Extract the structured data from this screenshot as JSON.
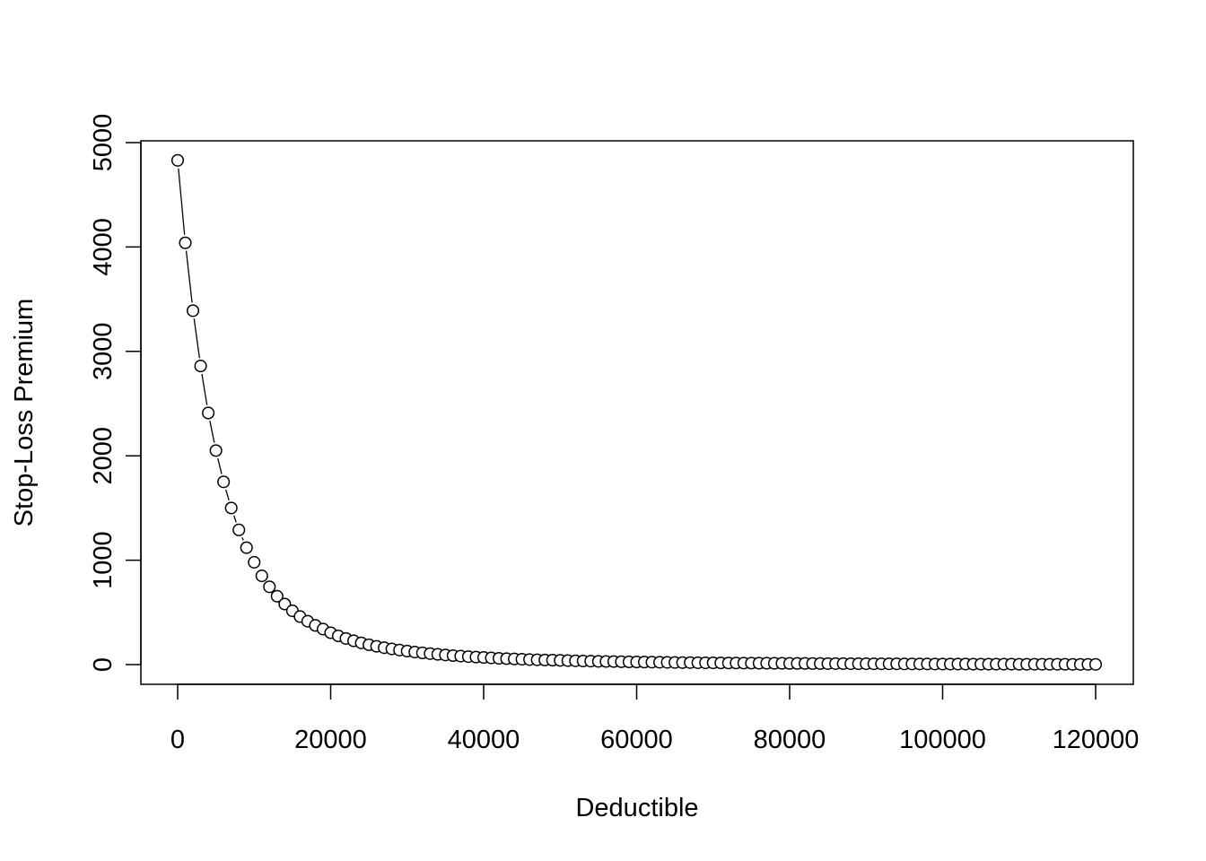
{
  "chart_data": {
    "type": "scatter",
    "title": "",
    "xlabel": "Deductible",
    "ylabel": "Stop-Loss Premium",
    "xlim": [
      0,
      120000
    ],
    "ylim": [
      0,
      5000
    ],
    "xticks": [
      0,
      20000,
      40000,
      60000,
      80000,
      100000,
      120000
    ],
    "yticks": [
      0,
      1000,
      2000,
      3000,
      4000,
      5000
    ],
    "xtick_labels": [
      "0",
      "20000",
      "40000",
      "60000",
      "80000",
      "100000",
      "120000"
    ],
    "ytick_labels": [
      "0",
      "1000",
      "2000",
      "3000",
      "4000",
      "5000"
    ],
    "marker": "open-circle",
    "connected_by": "line segments between points (R type 'b')",
    "grid": false,
    "legend": "none",
    "colors": {
      "points": "#000000",
      "line": "#000000",
      "background": "#ffffff"
    },
    "series": [
      {
        "x": [
          0,
          1000,
          2000,
          3000,
          4000,
          5000,
          6000,
          7000,
          8000,
          9000,
          10000,
          11000,
          12000,
          13000,
          14000,
          15000,
          16000,
          17000,
          18000,
          19000,
          20000,
          21000,
          22000,
          23000,
          24000,
          25000,
          26000,
          27000,
          28000,
          29000,
          30000,
          31000,
          32000,
          33000,
          34000,
          35000,
          36000,
          37000,
          38000,
          39000,
          40000,
          41000,
          42000,
          43000,
          44000,
          45000,
          46000,
          47000,
          48000,
          49000,
          50000,
          51000,
          52000,
          53000,
          54000,
          55000,
          56000,
          57000,
          58000,
          59000,
          60000,
          61000,
          62000,
          63000,
          64000,
          65000,
          66000,
          67000,
          68000,
          69000,
          70000,
          71000,
          72000,
          73000,
          74000,
          75000,
          76000,
          77000,
          78000,
          79000,
          80000,
          81000,
          82000,
          83000,
          84000,
          85000,
          86000,
          87000,
          88000,
          89000,
          90000,
          91000,
          92000,
          93000,
          94000,
          95000,
          96000,
          97000,
          98000,
          99000,
          100000,
          101000,
          102000,
          103000,
          104000,
          105000,
          106000,
          107000,
          108000,
          109000,
          110000,
          111000,
          112000,
          113000,
          114000,
          115000,
          116000,
          117000,
          118000,
          119000,
          120000
        ],
        "y": [
          4830,
          4040,
          3390,
          2860,
          2410,
          2050,
          1750,
          1500,
          1290,
          1120,
          980,
          850,
          745,
          655,
          580,
          515,
          460,
          415,
          375,
          340,
          305,
          275,
          250,
          228,
          208,
          190,
          175,
          162,
          150,
          139,
          129,
          120,
          112,
          105,
          98,
          92,
          86,
          81,
          76,
          72,
          68,
          64,
          60,
          57,
          54,
          51,
          48,
          46,
          44,
          42,
          40,
          38,
          36,
          34,
          33,
          31,
          30,
          29,
          27,
          26,
          25,
          24,
          23,
          22,
          21,
          20,
          19,
          19,
          18,
          17,
          17,
          16,
          15,
          15,
          14,
          14,
          13,
          13,
          12,
          12,
          11,
          11,
          11,
          10,
          10,
          9,
          9,
          9,
          8,
          8,
          8,
          7,
          7,
          7,
          7,
          6,
          6,
          6,
          6,
          5,
          5,
          5,
          5,
          5,
          4,
          4,
          4,
          4,
          4,
          4,
          3,
          3,
          3,
          3,
          3,
          3,
          3,
          2,
          2,
          2,
          2
        ]
      }
    ]
  }
}
